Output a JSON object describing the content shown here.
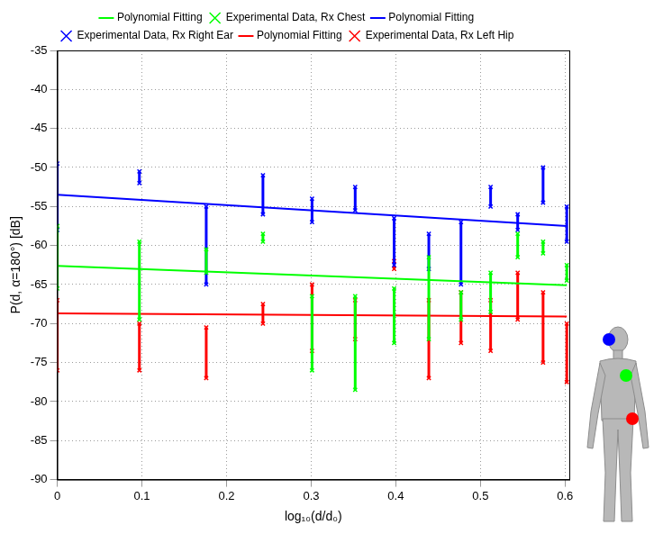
{
  "chart_data": {
    "type": "scatter",
    "xlabel": "log₁₀(d/d₀)",
    "ylabel": "P(d, α=180°) [dB]",
    "xlim": [
      0,
      0.605
    ],
    "xticks": [
      0,
      0.1,
      0.2,
      0.3,
      0.4,
      0.5,
      0.6
    ],
    "ylim": [
      -90,
      -35
    ],
    "yticks": [
      -90,
      -85,
      -80,
      -75,
      -70,
      -65,
      -60,
      -55,
      -50,
      -45,
      -40,
      -35
    ],
    "grid": true,
    "legend": "top",
    "series": [
      {
        "name": "Experimental Data, Rx Left Hip",
        "type": "range",
        "color": "#ff0000",
        "marker": "x",
        "x": [
          0,
          0.097,
          0.176,
          0.243,
          0.301,
          0.352,
          0.398,
          0.439,
          0.477,
          0.512,
          0.544,
          0.574,
          0.602
        ],
        "values": [
          [
            -67,
            -76
          ],
          [
            -70,
            -76
          ],
          [
            -70.5,
            -77
          ],
          [
            -67.5,
            -70
          ],
          [
            -65,
            -73.5
          ],
          [
            -67,
            -72
          ],
          [
            -62,
            -63
          ],
          [
            -67,
            -77
          ],
          [
            -66,
            -72.5
          ],
          [
            -67,
            -73.5
          ],
          [
            -63.5,
            -69.5
          ],
          [
            -66,
            -75
          ],
          [
            -70,
            -77.5
          ]
        ]
      },
      {
        "name": "Polynomial Fitting",
        "type": "line",
        "color": "#ff0000",
        "line_style": "solid",
        "x": [
          0,
          0.602
        ],
        "values": [
          -68.7,
          -69.1
        ]
      },
      {
        "name": "Experimental Data, Rx Right Ear",
        "type": "range",
        "color": "#0000ff",
        "marker": "x",
        "x": [
          0,
          0.097,
          0.176,
          0.243,
          0.301,
          0.352,
          0.398,
          0.439,
          0.477,
          0.512,
          0.544,
          0.574,
          0.602
        ],
        "values": [
          [
            -49.5,
            -58
          ],
          [
            -50.5,
            -52
          ],
          [
            -55,
            -65
          ],
          [
            -51,
            -56
          ],
          [
            -54,
            -57
          ],
          [
            -52.5,
            -55.5
          ],
          [
            -56.5,
            -62.5
          ],
          [
            -58.5,
            -63
          ],
          [
            -57,
            -65
          ],
          [
            -52.5,
            -55
          ],
          [
            -56,
            -58
          ],
          [
            -50,
            -54.5
          ],
          [
            -55,
            -59.5
          ]
        ]
      },
      {
        "name": "Polynomial Fitting",
        "type": "line",
        "color": "#0000ff",
        "line_style": "solid",
        "x": [
          0,
          0.602
        ],
        "values": [
          -53.5,
          -57.5
        ]
      },
      {
        "name": "Experimental Data, Rx Chest",
        "type": "range",
        "color": "#00ff00",
        "marker": "x",
        "x": [
          0,
          0.097,
          0.176,
          0.243,
          0.301,
          0.352,
          0.398,
          0.439,
          0.477,
          0.512,
          0.544,
          0.574,
          0.602
        ],
        "values": [
          [
            -57.5,
            -65.5
          ],
          [
            -59.5,
            -69.5
          ],
          [
            -60.5,
            -63.5
          ],
          [
            -58.5,
            -59.5
          ],
          [
            -66.5,
            -76
          ],
          [
            -66.5,
            -78.5
          ],
          [
            -65.5,
            -72.5
          ],
          [
            -61.5,
            -72
          ],
          [
            -66,
            -69.5
          ],
          [
            -63.5,
            -68.5
          ],
          [
            -58.5,
            -61.5
          ],
          [
            -59.5,
            -61
          ],
          [
            -62.5,
            -64.5
          ]
        ]
      },
      {
        "name": "Polynomial Fitting",
        "type": "line",
        "color": "#00ff00",
        "line_style": "solid",
        "x": [
          0,
          0.602
        ],
        "values": [
          -62.6,
          -65.1
        ]
      }
    ]
  }
}
